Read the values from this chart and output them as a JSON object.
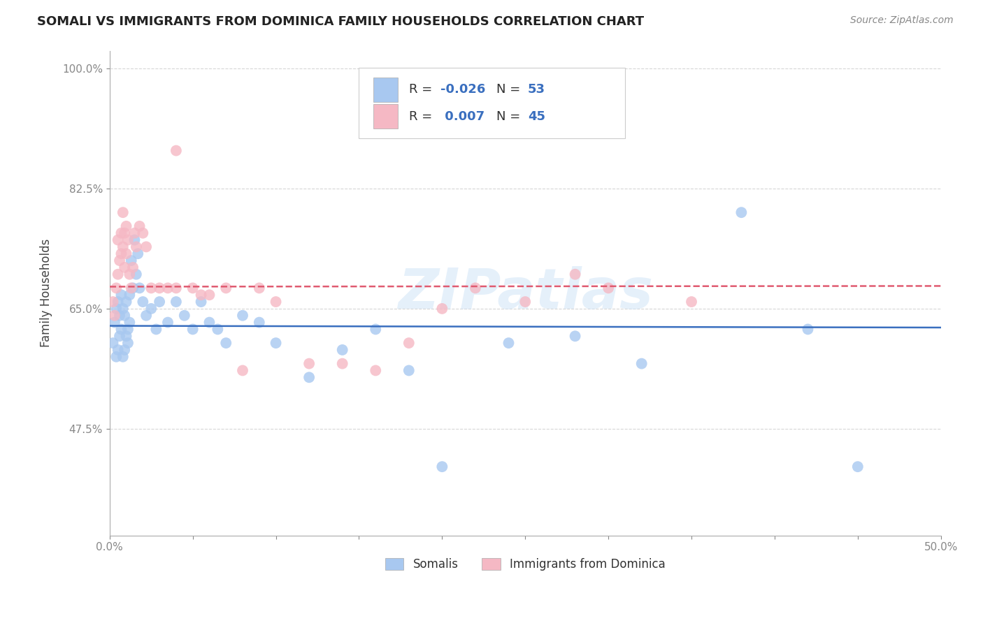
{
  "title": "SOMALI VS IMMIGRANTS FROM DOMINICA FAMILY HOUSEHOLDS CORRELATION CHART",
  "source": "Source: ZipAtlas.com",
  "ylabel_label": "Family Households",
  "x_min": 0.0,
  "x_max": 0.5,
  "y_min": 0.32,
  "y_max": 1.025,
  "x_ticks": [
    0.0,
    0.05,
    0.1,
    0.15,
    0.2,
    0.25,
    0.3,
    0.35,
    0.4,
    0.45,
    0.5
  ],
  "x_tick_labels": [
    "0.0%",
    "",
    "",
    "",
    "",
    "",
    "",
    "",
    "",
    "",
    "50.0%"
  ],
  "y_ticks": [
    0.475,
    0.65,
    0.825,
    1.0
  ],
  "y_tick_labels": [
    "47.5%",
    "65.0%",
    "82.5%",
    "100.0%"
  ],
  "grid_color": "#cccccc",
  "background_color": "#ffffff",
  "somali_color": "#a8c8f0",
  "dominica_color": "#f5b8c4",
  "somali_line_color": "#3a6fbf",
  "dominica_line_color": "#e05a70",
  "legend_R_color": "#3a6fbf",
  "legend_N_color": "#3a6fbf",
  "legend_label_color": "#333333",
  "watermark_text": "ZIPatlas",
  "watermark_color": "#d0e4f7",
  "legend_R_somali": "-0.026",
  "legend_N_somali": "53",
  "legend_R_dominica": "0.007",
  "legend_N_dominica": "45",
  "somali_x": [
    0.002,
    0.003,
    0.004,
    0.004,
    0.005,
    0.005,
    0.006,
    0.006,
    0.007,
    0.007,
    0.008,
    0.008,
    0.009,
    0.009,
    0.01,
    0.01,
    0.011,
    0.011,
    0.012,
    0.012,
    0.013,
    0.014,
    0.015,
    0.016,
    0.017,
    0.018,
    0.02,
    0.022,
    0.025,
    0.028,
    0.03,
    0.035,
    0.04,
    0.045,
    0.05,
    0.055,
    0.06,
    0.065,
    0.07,
    0.08,
    0.09,
    0.1,
    0.12,
    0.14,
    0.16,
    0.18,
    0.2,
    0.24,
    0.28,
    0.32,
    0.38,
    0.42,
    0.45
  ],
  "somali_y": [
    0.6,
    0.63,
    0.58,
    0.65,
    0.59,
    0.66,
    0.61,
    0.64,
    0.62,
    0.67,
    0.58,
    0.65,
    0.59,
    0.64,
    0.61,
    0.66,
    0.62,
    0.6,
    0.63,
    0.67,
    0.72,
    0.68,
    0.75,
    0.7,
    0.73,
    0.68,
    0.66,
    0.64,
    0.65,
    0.62,
    0.66,
    0.63,
    0.66,
    0.64,
    0.62,
    0.66,
    0.63,
    0.62,
    0.6,
    0.64,
    0.63,
    0.6,
    0.55,
    0.59,
    0.62,
    0.56,
    0.42,
    0.6,
    0.61,
    0.57,
    0.79,
    0.62,
    0.42
  ],
  "dominica_x": [
    0.002,
    0.003,
    0.004,
    0.005,
    0.005,
    0.006,
    0.007,
    0.007,
    0.008,
    0.008,
    0.009,
    0.009,
    0.01,
    0.01,
    0.011,
    0.012,
    0.013,
    0.014,
    0.015,
    0.016,
    0.018,
    0.02,
    0.022,
    0.025,
    0.03,
    0.035,
    0.04,
    0.05,
    0.06,
    0.07,
    0.08,
    0.09,
    0.1,
    0.12,
    0.14,
    0.16,
    0.18,
    0.2,
    0.22,
    0.25,
    0.28,
    0.3,
    0.35,
    0.04,
    0.055
  ],
  "dominica_y": [
    0.66,
    0.64,
    0.68,
    0.7,
    0.75,
    0.72,
    0.73,
    0.76,
    0.74,
    0.79,
    0.71,
    0.76,
    0.73,
    0.77,
    0.75,
    0.7,
    0.68,
    0.71,
    0.76,
    0.74,
    0.77,
    0.76,
    0.74,
    0.68,
    0.68,
    0.68,
    0.68,
    0.68,
    0.67,
    0.68,
    0.56,
    0.68,
    0.66,
    0.57,
    0.57,
    0.56,
    0.6,
    0.65,
    0.68,
    0.66,
    0.7,
    0.68,
    0.66,
    0.88,
    0.67
  ],
  "somali_line_intercept": 0.625,
  "somali_line_slope": -0.005,
  "dominica_line_intercept": 0.682,
  "dominica_line_slope": 0.002
}
